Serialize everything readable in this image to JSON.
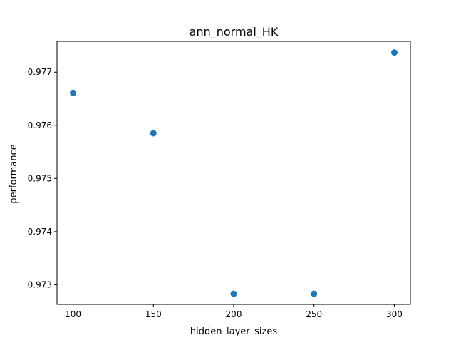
{
  "chart_data": {
    "type": "scatter",
    "title": "ann_normal_HK",
    "xlabel": "hidden_layer_sizes",
    "ylabel": "performance",
    "xlim": [
      90,
      310
    ],
    "ylim": [
      0.97263,
      0.97758
    ],
    "xticks": [
      100,
      150,
      200,
      250,
      300
    ],
    "xtick_labels": [
      "100",
      "150",
      "200",
      "250",
      "300"
    ],
    "yticks": [
      0.973,
      0.974,
      0.975,
      0.976,
      0.977
    ],
    "ytick_labels": [
      "0.973",
      "0.974",
      "0.975",
      "0.976",
      "0.977"
    ],
    "grid": false,
    "legend": "none",
    "series": [
      {
        "color": "#1f77b4",
        "points": [
          {
            "x": 100,
            "y": 0.97661
          },
          {
            "x": 150,
            "y": 0.97585
          },
          {
            "x": 200,
            "y": 0.97283
          },
          {
            "x": 250,
            "y": 0.97283
          },
          {
            "x": 300,
            "y": 0.97737
          }
        ]
      }
    ]
  }
}
